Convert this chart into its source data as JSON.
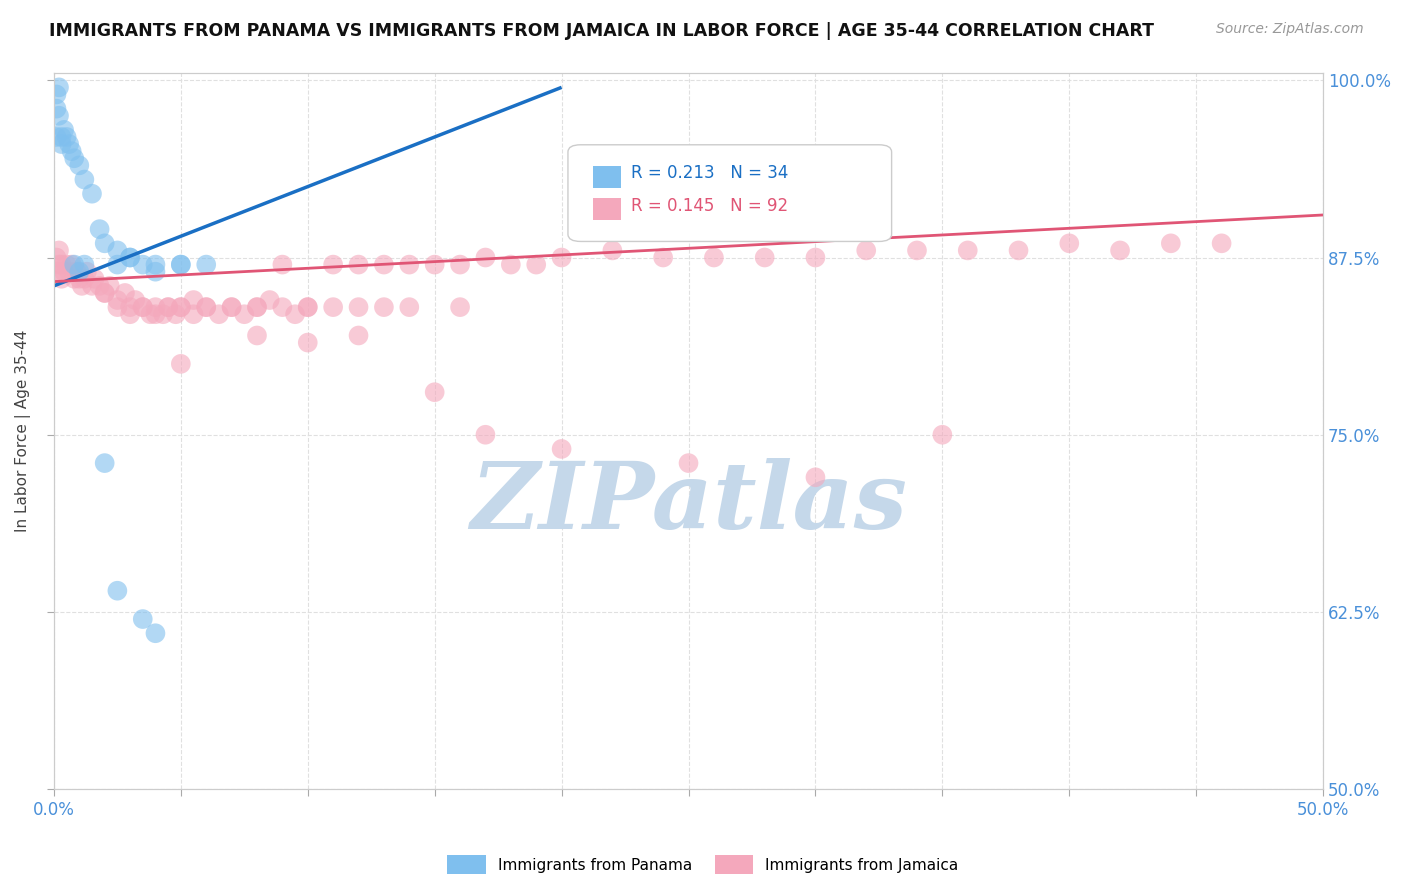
{
  "title": "IMMIGRANTS FROM PANAMA VS IMMIGRANTS FROM JAMAICA IN LABOR FORCE | AGE 35-44 CORRELATION CHART",
  "source_text": "Source: ZipAtlas.com",
  "ylabel": "In Labor Force | Age 35-44",
  "xlim": [
    0.0,
    0.5
  ],
  "ylim": [
    0.5,
    1.005
  ],
  "x_ticks": [
    0.0,
    0.05,
    0.1,
    0.15,
    0.2,
    0.25,
    0.3,
    0.35,
    0.4,
    0.45,
    0.5
  ],
  "y_ticks": [
    0.5,
    0.625,
    0.75,
    0.875,
    1.0
  ],
  "y_tick_labels": [
    "50.0%",
    "62.5%",
    "75.0%",
    "87.5%",
    "100.0%"
  ],
  "panama_color": "#7fbfee",
  "jamaica_color": "#f4a8bc",
  "panama_trend_color": "#1a6fc4",
  "jamaica_trend_color": "#e05575",
  "panama_R": 0.213,
  "panama_N": 34,
  "jamaica_R": 0.145,
  "jamaica_N": 92,
  "watermark": "ZIPatlas",
  "watermark_color": "#c5d8ea",
  "background_color": "#ffffff",
  "grid_color": "#e0e0e0",
  "panama_x": [
    0.001,
    0.001,
    0.001,
    0.002,
    0.002,
    0.003,
    0.003,
    0.004,
    0.005,
    0.006,
    0.007,
    0.008,
    0.01,
    0.012,
    0.015,
    0.018,
    0.02,
    0.025,
    0.03,
    0.04,
    0.05,
    0.06,
    0.025,
    0.03,
    0.035,
    0.04,
    0.05,
    0.008,
    0.01,
    0.012,
    0.02,
    0.025,
    0.035,
    0.04
  ],
  "panama_y": [
    0.99,
    0.98,
    0.96,
    0.995,
    0.975,
    0.96,
    0.955,
    0.965,
    0.96,
    0.955,
    0.95,
    0.945,
    0.94,
    0.93,
    0.92,
    0.895,
    0.885,
    0.88,
    0.875,
    0.87,
    0.87,
    0.87,
    0.87,
    0.875,
    0.87,
    0.865,
    0.87,
    0.87,
    0.865,
    0.87,
    0.73,
    0.64,
    0.62,
    0.61
  ],
  "jamaica_x": [
    0.001,
    0.001,
    0.002,
    0.002,
    0.003,
    0.003,
    0.004,
    0.005,
    0.006,
    0.007,
    0.008,
    0.009,
    0.01,
    0.011,
    0.012,
    0.013,
    0.015,
    0.016,
    0.018,
    0.02,
    0.022,
    0.025,
    0.028,
    0.03,
    0.032,
    0.035,
    0.038,
    0.04,
    0.043,
    0.045,
    0.048,
    0.05,
    0.055,
    0.06,
    0.065,
    0.07,
    0.075,
    0.08,
    0.085,
    0.09,
    0.095,
    0.1,
    0.11,
    0.12,
    0.13,
    0.14,
    0.15,
    0.16,
    0.17,
    0.18,
    0.19,
    0.2,
    0.22,
    0.24,
    0.26,
    0.28,
    0.3,
    0.32,
    0.34,
    0.36,
    0.38,
    0.4,
    0.42,
    0.44,
    0.46,
    0.05,
    0.08,
    0.1,
    0.12,
    0.15,
    0.17,
    0.2,
    0.25,
    0.3,
    0.35,
    0.02,
    0.025,
    0.03,
    0.035,
    0.04,
    0.045,
    0.05,
    0.055,
    0.06,
    0.07,
    0.08,
    0.09,
    0.1,
    0.11,
    0.12,
    0.13,
    0.14,
    0.16
  ],
  "jamaica_y": [
    0.875,
    0.865,
    0.88,
    0.87,
    0.87,
    0.86,
    0.865,
    0.87,
    0.865,
    0.87,
    0.86,
    0.865,
    0.86,
    0.855,
    0.86,
    0.865,
    0.855,
    0.86,
    0.855,
    0.85,
    0.855,
    0.845,
    0.85,
    0.84,
    0.845,
    0.84,
    0.835,
    0.84,
    0.835,
    0.84,
    0.835,
    0.84,
    0.835,
    0.84,
    0.835,
    0.84,
    0.835,
    0.84,
    0.845,
    0.87,
    0.835,
    0.84,
    0.87,
    0.87,
    0.87,
    0.87,
    0.87,
    0.87,
    0.875,
    0.87,
    0.87,
    0.875,
    0.88,
    0.875,
    0.875,
    0.875,
    0.875,
    0.88,
    0.88,
    0.88,
    0.88,
    0.885,
    0.88,
    0.885,
    0.885,
    0.8,
    0.82,
    0.815,
    0.82,
    0.78,
    0.75,
    0.74,
    0.73,
    0.72,
    0.75,
    0.85,
    0.84,
    0.835,
    0.84,
    0.835,
    0.84,
    0.84,
    0.845,
    0.84,
    0.84,
    0.84,
    0.84,
    0.84,
    0.84,
    0.84,
    0.84,
    0.84,
    0.84
  ],
  "panama_trend_x0": 0.0,
  "panama_trend_y0": 0.855,
  "panama_trend_x1": 0.2,
  "panama_trend_y1": 0.995,
  "jamaica_trend_x0": 0.0,
  "jamaica_trend_y0": 0.858,
  "jamaica_trend_x1": 0.5,
  "jamaica_trend_y1": 0.905
}
